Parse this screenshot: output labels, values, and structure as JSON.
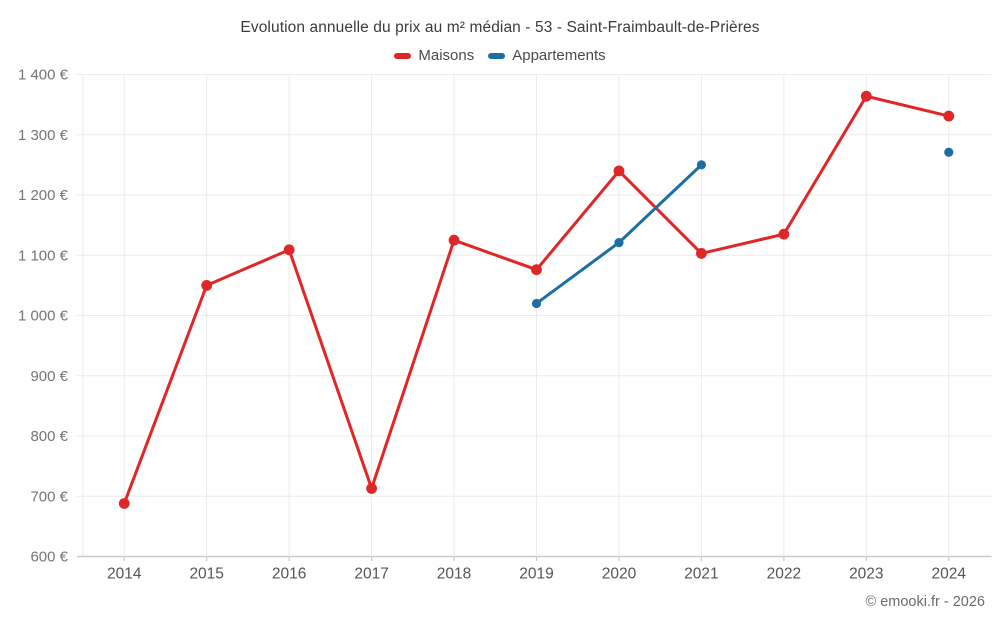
{
  "title": "Evolution annuelle du prix au m² médian - 53 - Saint-Fraimbault-de-Prières",
  "legend": {
    "items": [
      {
        "label": "Maisons",
        "color": "#e02626"
      },
      {
        "label": "Appartements",
        "color": "#1c6ea4"
      }
    ]
  },
  "footer": "© emooki.fr - 2026",
  "chart_data": {
    "type": "line",
    "title": "Evolution annuelle du prix au m² médian - 53 - Saint-Fraimbault-de-Prières",
    "categories": [
      "2014",
      "2015",
      "2016",
      "2017",
      "2018",
      "2019",
      "2020",
      "2021",
      "2022",
      "2023",
      "2024"
    ],
    "series": [
      {
        "name": "Maisons",
        "color": "#e02626",
        "values": [
          688,
          1050,
          1109,
          713,
          1125,
          1076,
          1240,
          1103,
          1135,
          1364,
          1331
        ]
      },
      {
        "name": "Appartements",
        "color": "#1c6ea4",
        "values": [
          null,
          null,
          null,
          null,
          null,
          1020,
          1121,
          1250,
          null,
          null,
          1271
        ]
      }
    ],
    "xlabel": "",
    "ylabel": "",
    "ylim": [
      600,
      1400
    ],
    "ytick_step": 100,
    "yticks": [
      {
        "value": 600,
        "label": "600 €"
      },
      {
        "value": 700,
        "label": "700 €"
      },
      {
        "value": 800,
        "label": "800 €"
      },
      {
        "value": 900,
        "label": "900 €"
      },
      {
        "value": 1000,
        "label": "1 000 €"
      },
      {
        "value": 1100,
        "label": "1 100 €"
      },
      {
        "value": 1200,
        "label": "1 200 €"
      },
      {
        "value": 1300,
        "label": "1 300 €"
      },
      {
        "value": 1400,
        "label": "1 400 €"
      }
    ],
    "grid": true,
    "legend_position": "top",
    "currency": "€"
  },
  "colors": {
    "grid": "#ebebeb",
    "axis_line": "#c9c9c9",
    "y_tick_label": "#757575",
    "x_tick_label": "#555555",
    "title": "#3c3c3c",
    "footer": "#6b6b6b"
  }
}
